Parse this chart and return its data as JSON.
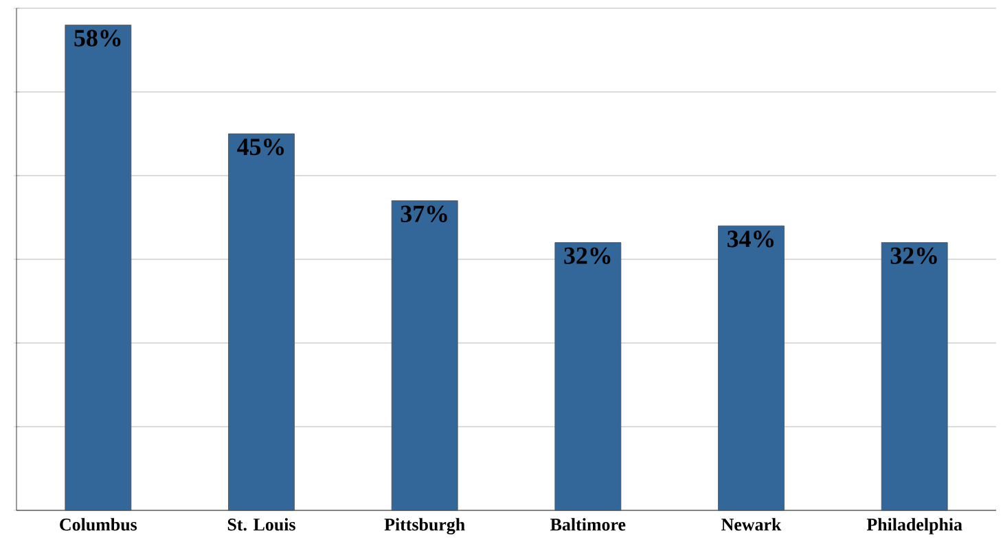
{
  "chart_data": {
    "type": "bar",
    "categories": [
      "Columbus",
      "St. Louis",
      "Pittsburgh",
      "Baltimore",
      "Newark",
      "Philadelphia"
    ],
    "values": [
      58,
      45,
      37,
      32,
      34,
      32
    ],
    "value_labels": [
      "58%",
      "45%",
      "37%",
      "32%",
      "34%",
      "32%"
    ],
    "color": "#336699",
    "ylim": [
      0,
      60
    ],
    "yticks": [
      {
        "value": 0,
        "label": null
      },
      {
        "value": 10,
        "label": null
      },
      {
        "value": 20,
        "label": null
      },
      {
        "value": 30,
        "label": null
      },
      {
        "value": 40,
        "label": null
      },
      {
        "value": 50,
        "label": null
      },
      {
        "value": 60,
        "label": null
      }
    ],
    "tick_labels": "x",
    "grid": "y"
  }
}
